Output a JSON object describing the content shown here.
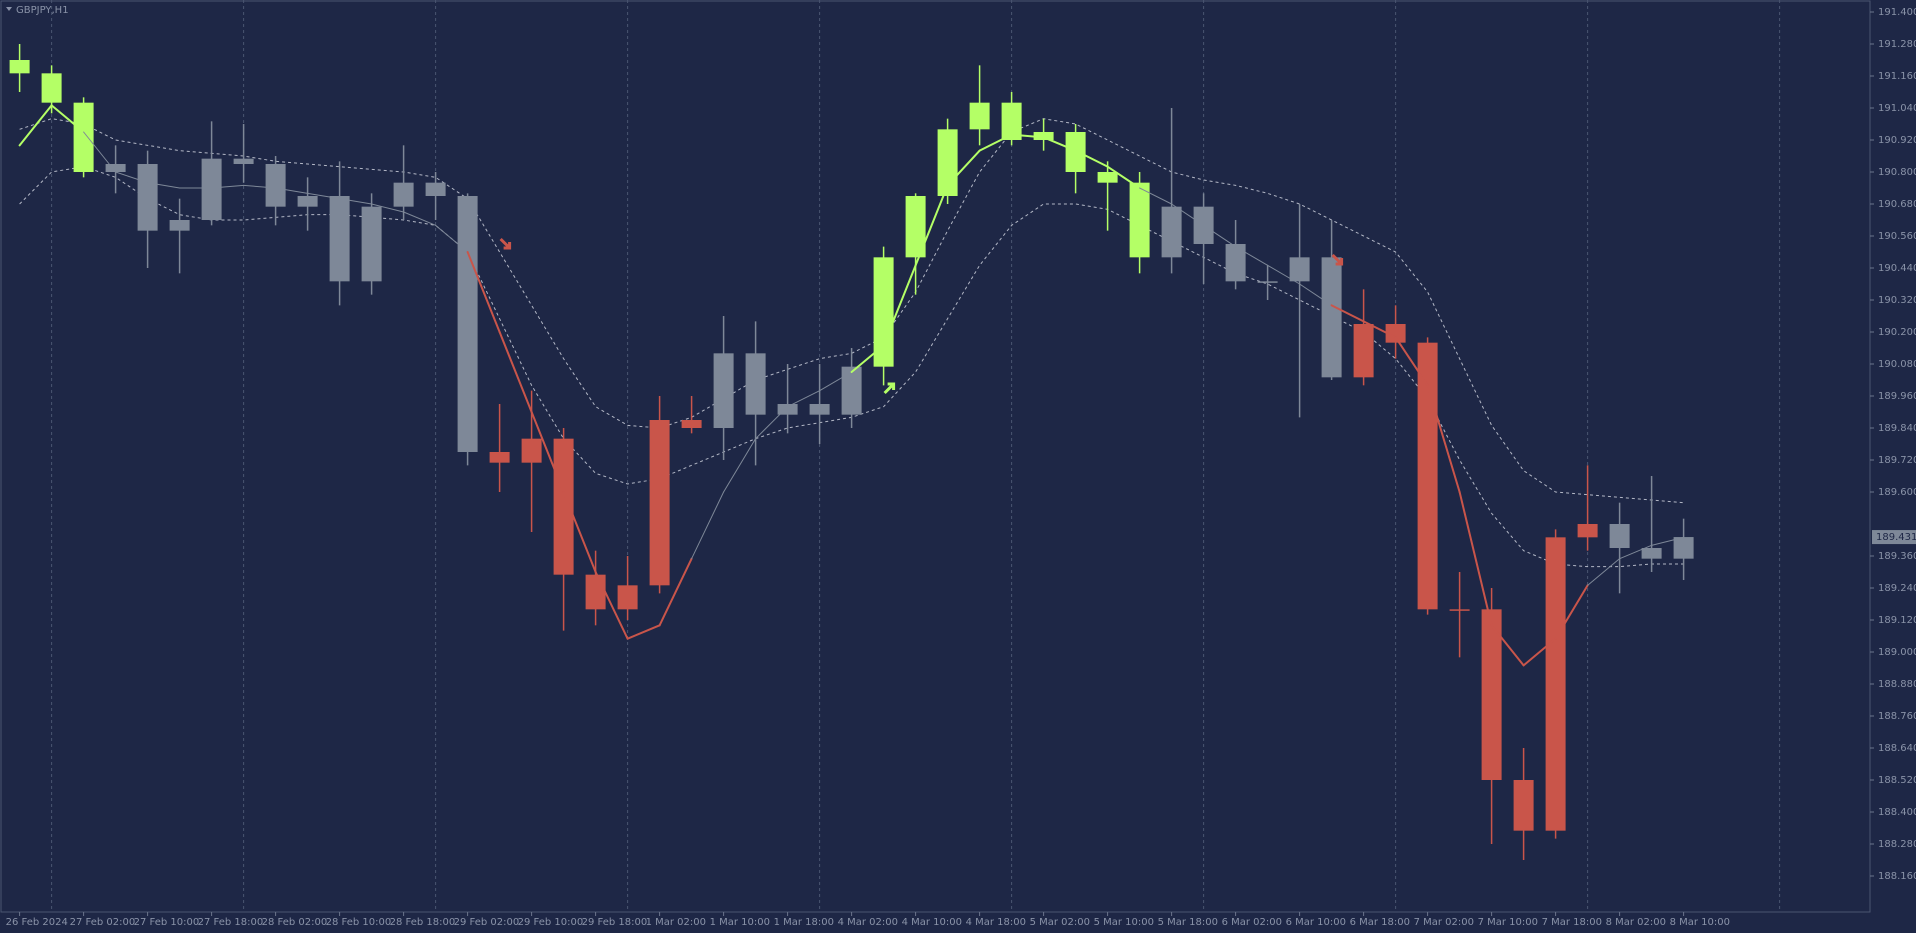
{
  "chart_data": {
    "type": "candlestick",
    "title": "GBPJPY,H1",
    "background": "#1e2746",
    "categories": [
      "26 Feb 2024",
      null,
      "27 Feb 02:00",
      null,
      "27 Feb 10:00",
      null,
      "27 Feb 18:00",
      null,
      "28 Feb 02:00",
      null,
      "28 Feb 10:00",
      null,
      "28 Feb 18:00",
      null,
      "29 Feb 02:00",
      null,
      "29 Feb 10:00",
      null,
      "29 Feb 18:00",
      null,
      "1 Mar 02:00",
      null,
      "1 Mar 10:00",
      null,
      "1 Mar 18:00",
      null,
      "4 Mar 02:00",
      null,
      "4 Mar 10:00",
      null,
      "4 Mar 18:00",
      null,
      "5 Mar 02:00",
      null,
      "5 Mar 10:00",
      null,
      "5 Mar 18:00",
      null,
      "6 Mar 02:00",
      null,
      "6 Mar 10:00",
      null,
      "6 Mar 18:00",
      null,
      "7 Mar 02:00",
      null,
      "7 Mar 10:00",
      null,
      "7 Mar 18:00",
      null,
      "8 Mar 02:00",
      null,
      "8 Mar 10:00"
    ],
    "open": [
      191.22,
      191.17,
      191.06,
      190.8,
      190.83,
      190.58,
      190.62,
      190.85,
      190.83,
      190.67,
      190.71,
      190.39,
      190.67,
      190.76,
      190.71,
      189.75,
      189.71,
      189.8,
      189.29,
      189.16,
      189.25,
      189.87,
      189.84,
      190.12,
      189.89,
      189.93,
      189.89,
      190.07,
      190.48,
      190.71,
      190.96,
      191.06,
      190.92,
      190.95,
      190.8,
      190.76,
      190.48,
      190.67,
      190.53,
      190.39,
      190.39,
      190.48,
      190.03,
      190.23,
      190.16,
      189.16,
      189.16,
      188.52,
      188.33,
      189.43,
      189.48,
      189.39,
      189.35
    ],
    "high": [
      191.28,
      191.2,
      191.08,
      190.9,
      190.88,
      190.7,
      190.99,
      190.98,
      190.86,
      190.78,
      190.84,
      190.72,
      190.9,
      190.8,
      190.72,
      189.93,
      189.98,
      189.84,
      189.38,
      189.36,
      189.96,
      189.96,
      190.26,
      190.24,
      190.08,
      190.08,
      190.14,
      190.52,
      190.72,
      191.0,
      191.2,
      191.1,
      191.0,
      190.98,
      190.84,
      190.8,
      191.04,
      190.72,
      190.62,
      190.45,
      190.68,
      190.62,
      190.36,
      190.3,
      190.18,
      189.3,
      189.24,
      188.64,
      189.46,
      189.7,
      189.56,
      189.66,
      189.5
    ],
    "low": [
      191.1,
      191.02,
      190.78,
      190.72,
      190.44,
      190.42,
      190.6,
      190.76,
      190.6,
      190.58,
      190.3,
      190.34,
      190.62,
      190.62,
      189.7,
      189.6,
      189.45,
      189.08,
      189.1,
      189.12,
      189.22,
      189.82,
      189.72,
      189.7,
      189.82,
      189.78,
      189.84,
      190.0,
      190.34,
      190.68,
      190.9,
      190.9,
      190.88,
      190.72,
      190.58,
      190.42,
      190.42,
      190.38,
      190.36,
      190.32,
      189.88,
      190.02,
      190.0,
      190.1,
      189.14,
      188.98,
      188.28,
      188.22,
      188.3,
      189.38,
      189.22,
      189.3,
      189.27
    ],
    "close": [
      191.17,
      191.06,
      190.8,
      190.83,
      190.58,
      190.62,
      190.85,
      190.83,
      190.67,
      190.71,
      190.39,
      190.67,
      190.76,
      190.71,
      189.75,
      189.71,
      189.8,
      189.29,
      189.16,
      189.25,
      189.87,
      189.84,
      190.12,
      189.89,
      189.93,
      189.89,
      190.07,
      190.48,
      190.71,
      190.96,
      191.06,
      190.92,
      190.95,
      190.8,
      190.76,
      190.48,
      190.67,
      190.53,
      190.39,
      190.39,
      190.48,
      190.03,
      190.23,
      190.16,
      189.16,
      189.16,
      188.52,
      188.33,
      189.43,
      189.48,
      189.39,
      189.35,
      189.431
    ],
    "colors": [
      "#b4ff66",
      "#b4ff66",
      "#b4ff66",
      "#7e8898",
      "#7e8898",
      "#7e8898",
      "#7e8898",
      "#7e8898",
      "#7e8898",
      "#7e8898",
      "#7e8898",
      "#7e8898",
      "#7e8898",
      "#7e8898",
      "#7e8898",
      "#c9554a",
      "#c9554a",
      "#c9554a",
      "#c9554a",
      "#c9554a",
      "#c9554a",
      "#c9554a",
      "#7e8898",
      "#7e8898",
      "#7e8898",
      "#7e8898",
      "#7e8898",
      "#b4ff66",
      "#b4ff66",
      "#b4ff66",
      "#b4ff66",
      "#b4ff66",
      "#b4ff66",
      "#b4ff66",
      "#b4ff66",
      "#b4ff66",
      "#7e8898",
      "#7e8898",
      "#7e8898",
      "#7e8898",
      "#7e8898",
      "#7e8898",
      "#c9554a",
      "#c9554a",
      "#c9554a",
      "#c9554a",
      "#c9554a",
      "#c9554a",
      "#c9554a",
      "#c9554a",
      "#7e8898",
      "#7e8898",
      "#7e8898"
    ],
    "trend_line": [
      190.9,
      191.05,
      190.95,
      190.8,
      190.76,
      190.74,
      190.74,
      190.75,
      190.74,
      190.72,
      190.7,
      190.68,
      190.65,
      190.6,
      190.5,
      190.2,
      189.9,
      189.6,
      189.3,
      189.05,
      189.1,
      189.35,
      189.6,
      189.8,
      189.92,
      189.98,
      190.05,
      190.15,
      190.45,
      190.75,
      190.88,
      190.94,
      190.93,
      190.88,
      190.82,
      190.74,
      190.68,
      190.6,
      190.52,
      190.45,
      190.38,
      190.3,
      190.24,
      190.18,
      190.0,
      189.6,
      189.1,
      188.95,
      189.05,
      189.25,
      189.35,
      189.4,
      189.43
    ],
    "upper_band": [
      190.96,
      191.0,
      190.98,
      190.92,
      190.9,
      190.88,
      190.87,
      190.86,
      190.84,
      190.83,
      190.82,
      190.81,
      190.8,
      190.78,
      190.7,
      190.5,
      190.3,
      190.1,
      189.92,
      189.85,
      189.84,
      189.88,
      189.95,
      190.02,
      190.06,
      190.1,
      190.12,
      190.18,
      190.35,
      190.58,
      190.8,
      190.95,
      191.0,
      190.98,
      190.92,
      190.86,
      190.8,
      190.77,
      190.75,
      190.72,
      190.68,
      190.62,
      190.56,
      190.5,
      190.35,
      190.1,
      189.85,
      189.68,
      189.6,
      189.59,
      189.58,
      189.57,
      189.56
    ],
    "lower_band": [
      190.68,
      190.8,
      190.82,
      190.78,
      190.7,
      190.64,
      190.62,
      190.62,
      190.63,
      190.64,
      190.64,
      190.63,
      190.62,
      190.6,
      190.5,
      190.25,
      190.0,
      189.8,
      189.67,
      189.63,
      189.65,
      189.7,
      189.75,
      189.8,
      189.84,
      189.86,
      189.88,
      189.92,
      190.05,
      190.25,
      190.45,
      190.6,
      190.68,
      190.68,
      190.66,
      190.6,
      190.54,
      190.48,
      190.42,
      190.38,
      190.32,
      190.26,
      190.2,
      190.1,
      189.95,
      189.72,
      189.52,
      189.38,
      189.33,
      189.32,
      189.32,
      189.33,
      189.33
    ],
    "band_color": "#d8dce6",
    "signals": [
      {
        "index": 15,
        "price": 190.53,
        "direction": "down",
        "color": "#c9554a"
      },
      {
        "index": 27,
        "price": 189.99,
        "direction": "up",
        "color": "#b4ff66"
      },
      {
        "index": 41,
        "price": 190.47,
        "direction": "down",
        "color": "#c9554a"
      }
    ],
    "last_price": {
      "value": 189.431,
      "label": "189.431"
    },
    "ylim": [
      188.025,
      191.445
    ],
    "yticks": [
      {
        "value": 191.4,
        "label": "191.400"
      },
      {
        "value": 191.28,
        "label": "191.280"
      },
      {
        "value": 191.16,
        "label": "191.160"
      },
      {
        "value": 191.04,
        "label": "191.040"
      },
      {
        "value": 190.92,
        "label": "190.920"
      },
      {
        "value": 190.8,
        "label": "190.800"
      },
      {
        "value": 190.68,
        "label": "190.680"
      },
      {
        "value": 190.56,
        "label": "190.560"
      },
      {
        "value": 190.44,
        "label": "190.440"
      },
      {
        "value": 190.32,
        "label": "190.320"
      },
      {
        "value": 190.2,
        "label": "190.200"
      },
      {
        "value": 190.08,
        "label": "190.080"
      },
      {
        "value": 189.96,
        "label": "189.960"
      },
      {
        "value": 189.84,
        "label": "189.840"
      },
      {
        "value": 189.72,
        "label": "189.720"
      },
      {
        "value": 189.6,
        "label": "189.600"
      },
      {
        "value": 189.36,
        "label": "189.360"
      },
      {
        "value": 189.24,
        "label": "189.240"
      },
      {
        "value": 189.12,
        "label": "189.120"
      },
      {
        "value": 189.0,
        "label": "189.000"
      },
      {
        "value": 188.88,
        "label": "188.880"
      },
      {
        "value": 188.76,
        "label": "188.760"
      },
      {
        "value": 188.64,
        "label": "188.640"
      },
      {
        "value": 188.52,
        "label": "188.520"
      },
      {
        "value": 188.4,
        "label": "188.400"
      },
      {
        "value": 188.28,
        "label": "188.280"
      },
      {
        "value": 188.16,
        "label": "188.160"
      }
    ]
  }
}
